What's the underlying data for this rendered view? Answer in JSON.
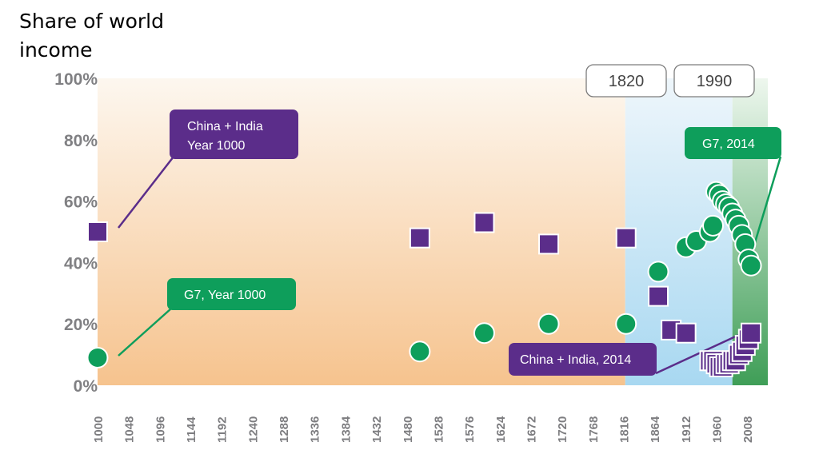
{
  "chart_data": {
    "type": "scatter",
    "ylabel": "Share of world income",
    "y_ticks": [
      "100%",
      "80%",
      "60%",
      "40%",
      "20%",
      "0%"
    ],
    "ylim": [
      0,
      100
    ],
    "x_ticks": [
      "1000",
      "1048",
      "1096",
      "1144",
      "1192",
      "1240",
      "1288",
      "1336",
      "1384",
      "1432",
      "1480",
      "1528",
      "1576",
      "1624",
      "1672",
      "1720",
      "1768",
      "1816",
      "1864",
      "1912",
      "1960",
      "2008"
    ],
    "xlim": [
      1000,
      2040
    ],
    "eras": [
      "1820",
      "1990"
    ],
    "series": [
      {
        "key": "china_india",
        "color": "#5b2d8a",
        "marker": "square",
        "points": [
          [
            1000,
            50
          ],
          [
            1500,
            48
          ],
          [
            1600,
            53
          ],
          [
            1700,
            46
          ],
          [
            1820,
            48
          ],
          [
            1870,
            29
          ],
          [
            1890,
            18
          ],
          [
            1913,
            17
          ],
          [
            1950,
            8
          ],
          [
            1955,
            8
          ],
          [
            1960,
            7
          ],
          [
            1965,
            6
          ],
          [
            1970,
            6
          ],
          [
            1975,
            7
          ],
          [
            1980,
            7
          ],
          [
            1985,
            8
          ],
          [
            1990,
            8
          ],
          [
            1995,
            10
          ],
          [
            2000,
            11
          ],
          [
            2005,
            13
          ],
          [
            2010,
            15
          ],
          [
            2014,
            17
          ]
        ]
      },
      {
        "key": "g7",
        "color": "#0e9e5b",
        "marker": "circle",
        "points": [
          [
            1000,
            9
          ],
          [
            1500,
            11
          ],
          [
            1600,
            17
          ],
          [
            1700,
            20
          ],
          [
            1820,
            20
          ],
          [
            1870,
            37
          ],
          [
            1913,
            45
          ],
          [
            1929,
            47
          ],
          [
            1950,
            50
          ],
          [
            1955,
            52
          ],
          [
            1960,
            63
          ],
          [
            1965,
            62
          ],
          [
            1970,
            60
          ],
          [
            1975,
            59
          ],
          [
            1980,
            58
          ],
          [
            1985,
            56
          ],
          [
            1990,
            54
          ],
          [
            1995,
            52
          ],
          [
            2000,
            49
          ],
          [
            2005,
            46
          ],
          [
            2010,
            41
          ],
          [
            2014,
            39
          ]
        ]
      }
    ],
    "callouts": [
      {
        "key": "china_1000",
        "lines": [
          "China + India",
          "Year 1000"
        ],
        "color": "#5b2d8a"
      },
      {
        "key": "g7_1000",
        "lines": [
          "G7, Year 1000"
        ],
        "color": "#0e9e5b"
      },
      {
        "key": "g7_2014",
        "lines": [
          "G7, 2014"
        ],
        "color": "#0e9e5b"
      },
      {
        "key": "china_2014",
        "lines": [
          "China + India, 2014"
        ],
        "color": "#5b2d8a"
      }
    ]
  }
}
